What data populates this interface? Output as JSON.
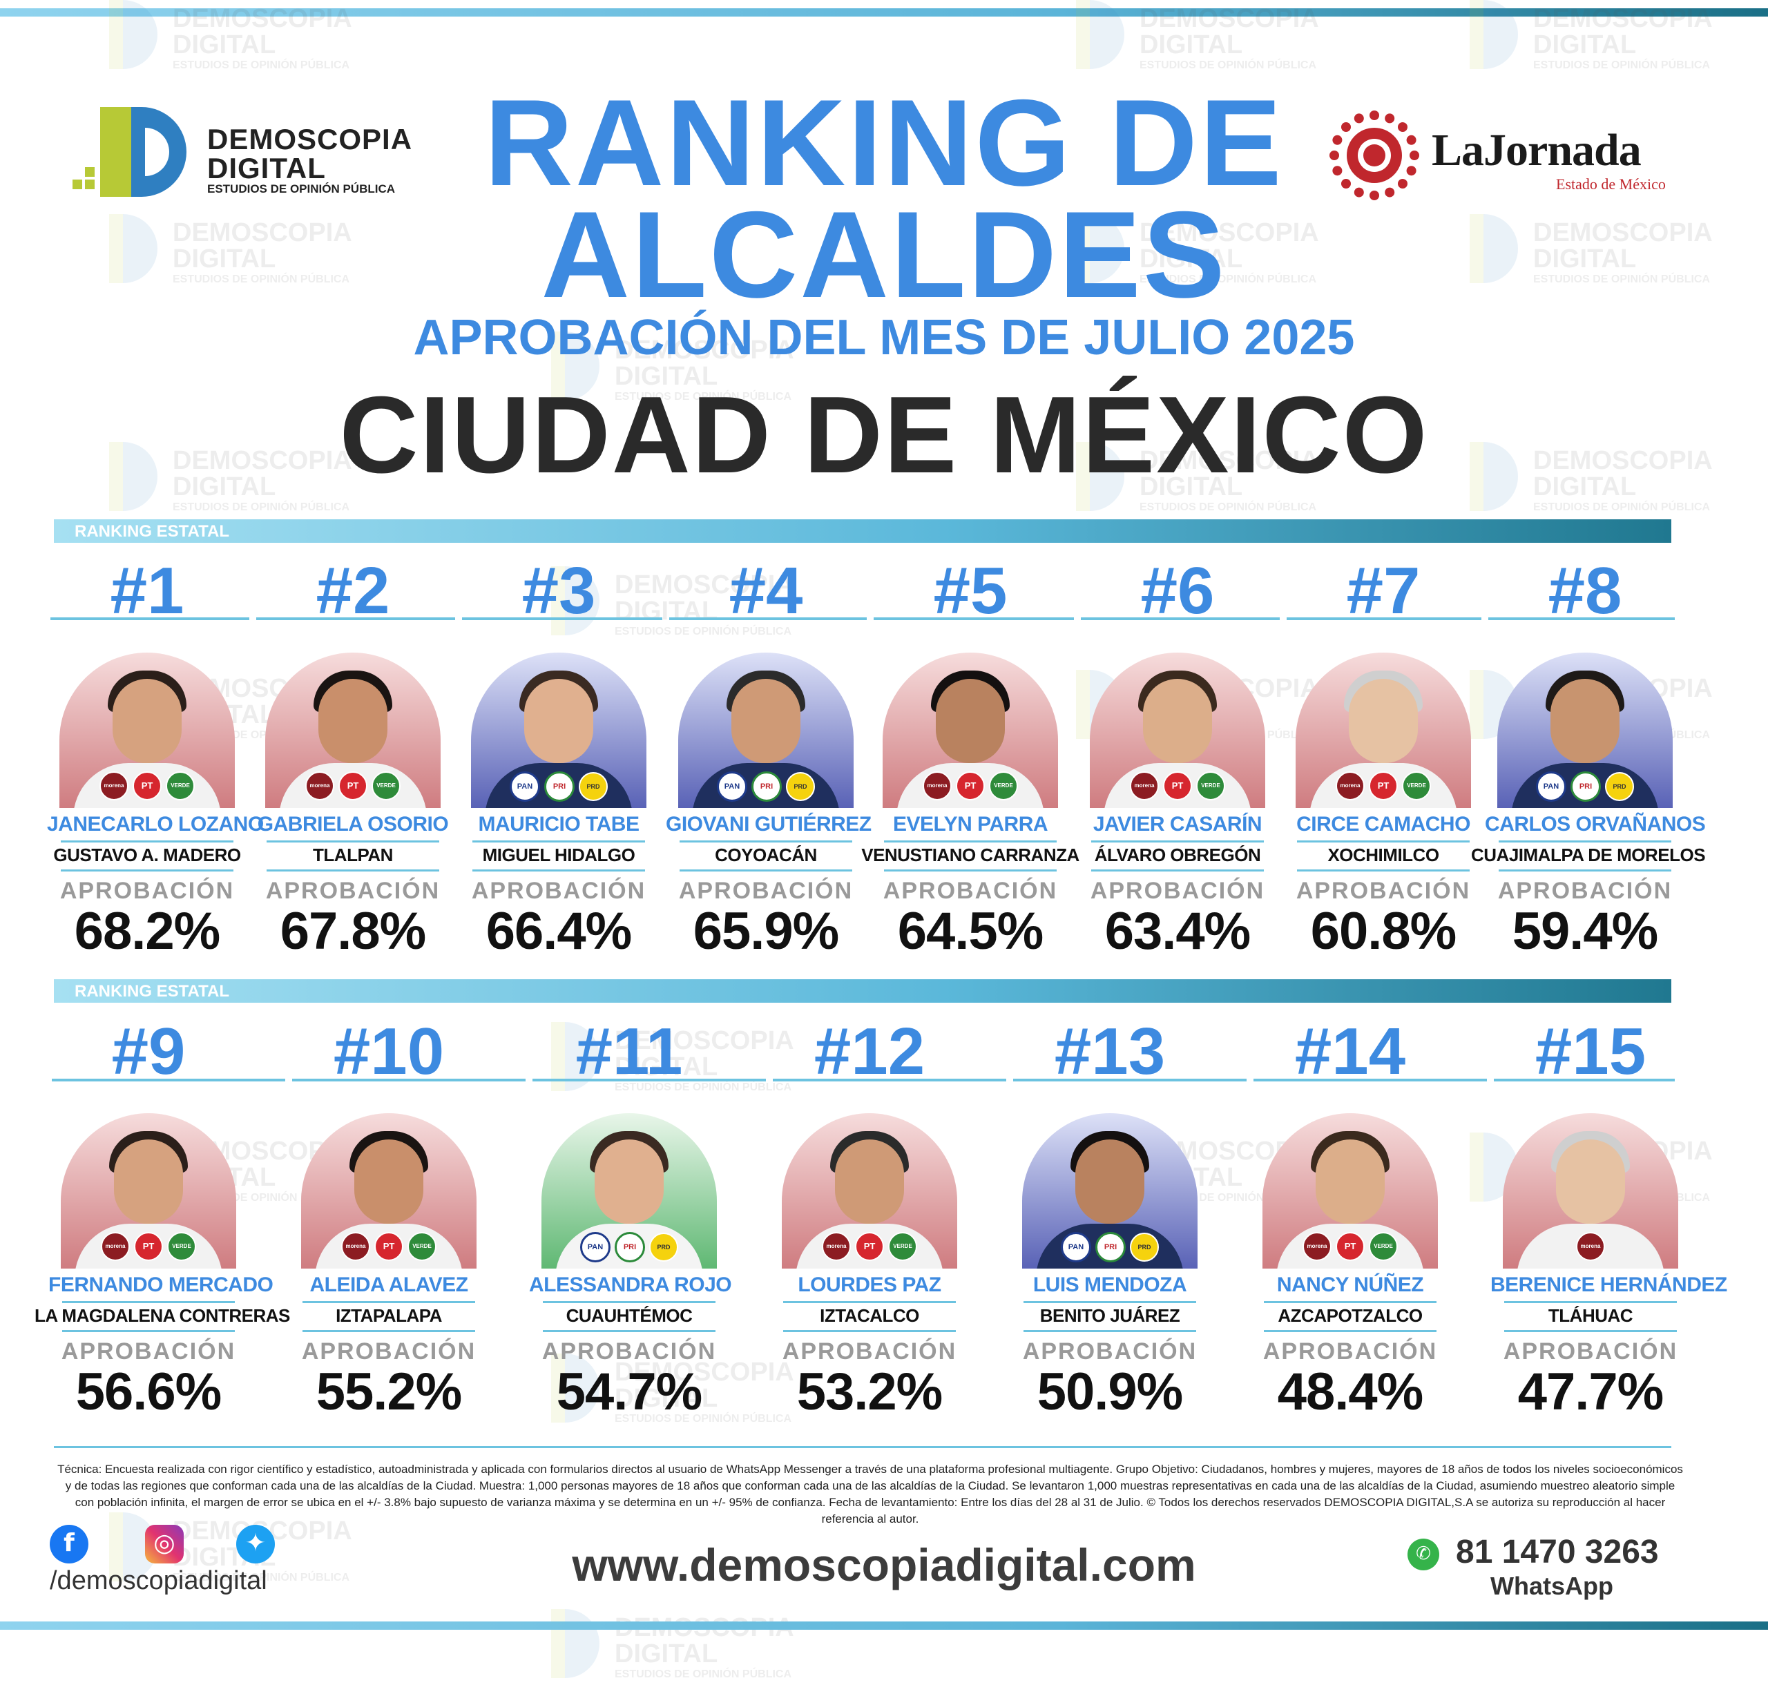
{
  "header": {
    "brand_line1": "DEMOSCOPIA",
    "brand_line2": "DIGITAL",
    "brand_tagline": "ESTUDIOS DE OPINIÓN PÚBLICA",
    "partner_name": "LaJornada",
    "partner_sub": "Estado de México",
    "title_line1": "RANKING DE",
    "title_line2": "ALCALDES",
    "subtitle": "APROBACIÓN DEL MES DE JULIO 2025",
    "city": "CIUDAD DE MÉXICO"
  },
  "colors": {
    "accent": "#3d8ae0",
    "bar": "#5bb8da",
    "text": "#111111",
    "muted": "#9a9a9a"
  },
  "sections": [
    {
      "label": "RANKING ESTATAL",
      "candidates": [
        {
          "rank": "#1",
          "name": "JANECARLO LOZANO",
          "alcaldia": "GUSTAVO A. MADERO",
          "label": "APROBACIÓN",
          "approval": "68.2%",
          "bg": "red",
          "parties": [
            "morena",
            "PT",
            "VERDE"
          ]
        },
        {
          "rank": "#2",
          "name": "GABRIELA OSORIO",
          "alcaldia": "TLALPAN",
          "label": "APROBACIÓN",
          "approval": "67.8%",
          "bg": "red",
          "parties": [
            "morena",
            "PT",
            "VERDE"
          ]
        },
        {
          "rank": "#3",
          "name": "MAURICIO TABE",
          "alcaldia": "MIGUEL HIDALGO",
          "label": "APROBACIÓN",
          "approval": "66.4%",
          "bg": "blue",
          "parties": [
            "PAN",
            "PRI",
            "PRD"
          ]
        },
        {
          "rank": "#4",
          "name": "GIOVANI GUTIÉRREZ",
          "alcaldia": "COYOACÁN",
          "label": "APROBACIÓN",
          "approval": "65.9%",
          "bg": "blue",
          "parties": [
            "PAN",
            "PRI",
            "PRD"
          ]
        },
        {
          "rank": "#5",
          "name": "EVELYN PARRA",
          "alcaldia": "VENUSTIANO CARRANZA",
          "label": "APROBACIÓN",
          "approval": "64.5%",
          "bg": "red",
          "parties": [
            "morena",
            "PT",
            "VERDE"
          ]
        },
        {
          "rank": "#6",
          "name": "JAVIER CASARÍN",
          "alcaldia": "ÁLVARO OBREGÓN",
          "label": "APROBACIÓN",
          "approval": "63.4%",
          "bg": "red",
          "parties": [
            "morena",
            "PT",
            "VERDE"
          ]
        },
        {
          "rank": "#7",
          "name": "CIRCE CAMACHO",
          "alcaldia": "XOCHIMILCO",
          "label": "APROBACIÓN",
          "approval": "60.8%",
          "bg": "red",
          "parties": [
            "morena",
            "PT",
            "VERDE"
          ]
        },
        {
          "rank": "#8",
          "name": "CARLOS ORVAÑANOS",
          "alcaldia": "CUAJIMALPA DE MORELOS",
          "label": "APROBACIÓN",
          "approval": "59.4%",
          "bg": "blue",
          "parties": [
            "PAN",
            "PRI",
            "PRD"
          ]
        }
      ]
    },
    {
      "label": "RANKING ESTATAL",
      "candidates": [
        {
          "rank": "#9",
          "name": "FERNANDO MERCADO",
          "alcaldia": "LA MAGDALENA CONTRERAS",
          "label": "APROBACIÓN",
          "approval": "56.6%",
          "bg": "red",
          "parties": [
            "morena",
            "PT",
            "VERDE"
          ]
        },
        {
          "rank": "#10",
          "name": "ALEIDA ALAVEZ",
          "alcaldia": "IZTAPALAPA",
          "label": "APROBACIÓN",
          "approval": "55.2%",
          "bg": "red",
          "parties": [
            "morena",
            "PT",
            "VERDE"
          ]
        },
        {
          "rank": "#11",
          "name": "ALESSANDRA ROJO",
          "alcaldia": "CUAUHTÉMOC",
          "label": "APROBACIÓN",
          "approval": "54.7%",
          "bg": "green",
          "parties": [
            "PAN",
            "PRI",
            "PRD"
          ]
        },
        {
          "rank": "#12",
          "name": "LOURDES PAZ",
          "alcaldia": "IZTACALCO",
          "label": "APROBACIÓN",
          "approval": "53.2%",
          "bg": "red",
          "parties": [
            "morena",
            "PT",
            "VERDE"
          ]
        },
        {
          "rank": "#13",
          "name": "LUIS MENDOZA",
          "alcaldia": "BENITO JUÁREZ",
          "label": "APROBACIÓN",
          "approval": "50.9%",
          "bg": "blue",
          "parties": [
            "PAN",
            "PRI",
            "PRD"
          ]
        },
        {
          "rank": "#14",
          "name": "NANCY NÚÑEZ",
          "alcaldia": "AZCAPOTZALCO",
          "label": "APROBACIÓN",
          "approval": "48.4%",
          "bg": "red",
          "parties": [
            "morena",
            "PT",
            "VERDE"
          ]
        },
        {
          "rank": "#15",
          "name": "BERENICE HERNÁNDEZ",
          "alcaldia": "TLÁHUAC",
          "label": "APROBACIÓN",
          "approval": "47.7%",
          "bg": "red",
          "parties": [
            "morena"
          ]
        }
      ]
    }
  ],
  "footer": {
    "methodology": "Técnica: Encuesta realizada con rigor científico y estadístico, autoadministrada y aplicada con formularios directos al usuario de WhatsApp Messenger a través de una plataforma profesional multiagente. Grupo Objetivo: Ciudadanos, hombres y mujeres, mayores de 18 años de todos los niveles socioeconómicos y de todas las regiones que conforman cada una de las alcaldías de la Ciudad. Muestra: 1,000 personas mayores de 18 años que conforman cada una de las alcaldías de la Ciudad. Se levantaron 1,000 muestras representativas en cada una de las alcaldías de la Ciudad, asumiendo muestreo aleatorio simple con población infinita, el margen de error se ubica en el +/- 3.8% bajo supuesto de varianza máxima y se determina en un +/- 95% de confianza. Fecha de levantamiento: Entre los días del 28 al 31 de Julio. © Todos los derechos reservados DEMOSCOPIA DIGITAL,S.A se autoriza su reproducción al hacer referencia al autor.",
    "social_handle": "/demoscopiadigital",
    "website": "www.demoscopiadigital.com",
    "phone": "81 1470 3263",
    "whatsapp_label": "WhatsApp",
    "social_icons": [
      "facebook-icon",
      "instagram-icon",
      "twitter-icon"
    ]
  }
}
